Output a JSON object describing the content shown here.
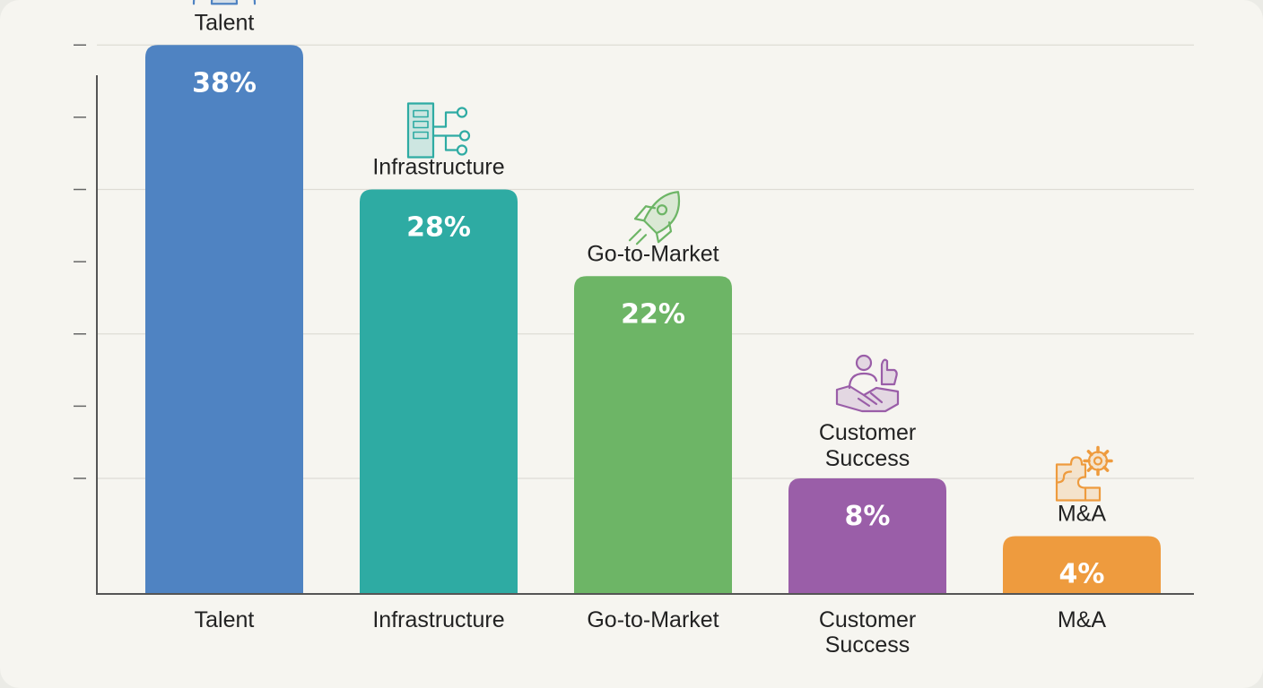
{
  "chart_data": {
    "type": "bar",
    "title": "",
    "xlabel": "",
    "ylabel": "",
    "ylim": [
      0,
      40
    ],
    "grid": true,
    "categories": [
      "Talent",
      "Infrastructure",
      "Go-to-Market",
      "Customer Success",
      "M&A"
    ],
    "category_lines": [
      [
        "Talent"
      ],
      [
        "Infrastructure"
      ],
      [
        "Go-to-Market"
      ],
      [
        "Customer",
        "Success"
      ],
      [
        "M&A"
      ]
    ],
    "values": [
      38,
      28,
      22,
      8,
      4
    ],
    "value_labels": [
      "38%",
      "28%",
      "22%",
      "8%",
      "4%"
    ],
    "icons": [
      "people-group-icon",
      "server-network-icon",
      "rocket-icon",
      "handshake-thumbs-up-icon",
      "puzzle-gear-icon"
    ],
    "colors": [
      "#4f83c2",
      "#2eaba3",
      "#6db566",
      "#9a5ea8",
      "#ee9b3e"
    ]
  }
}
